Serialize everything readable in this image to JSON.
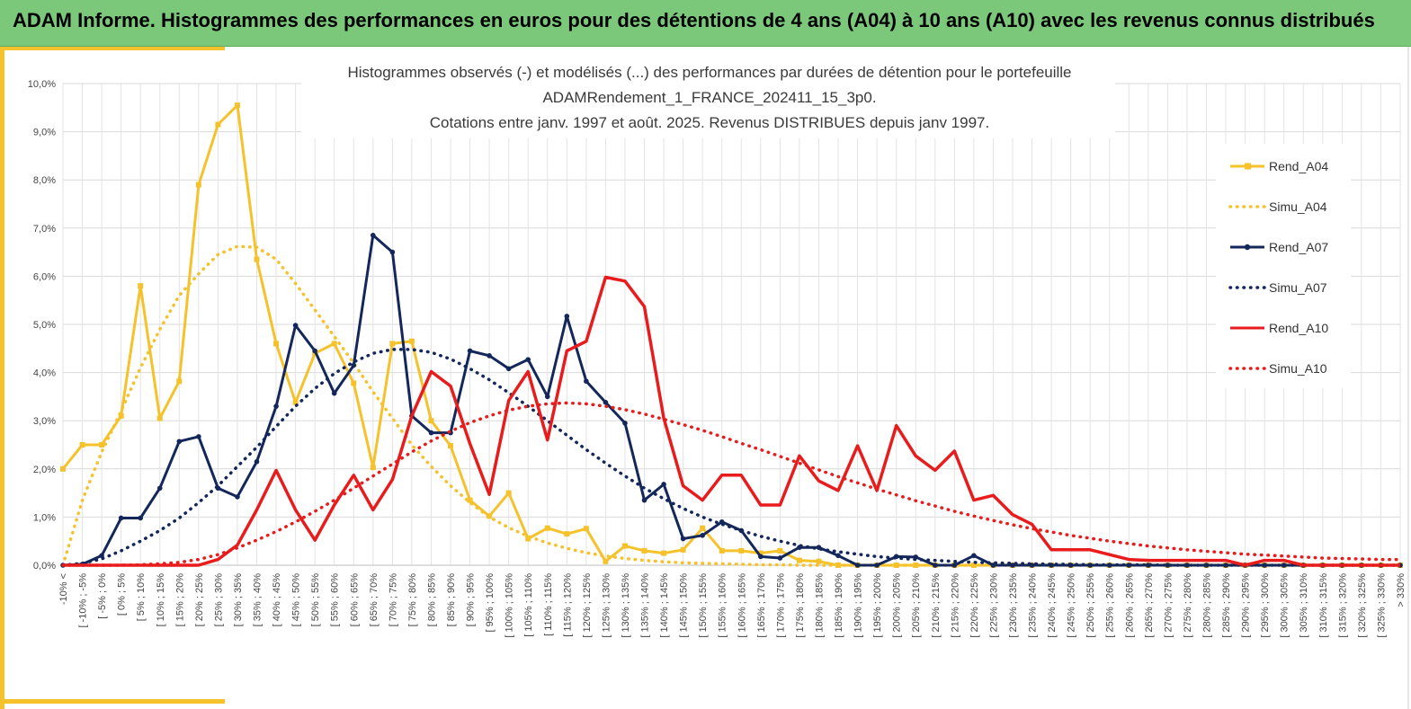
{
  "banner": {
    "title": "ADAM Informe. Histogrammes des performances en euros pour des détentions de 4 ans (A04) à 10 ans (A10) avec les revenus connus distribués"
  },
  "colors": {
    "A04": "#f5c22b",
    "A07": "#13275a",
    "A10": "#e81c1c",
    "banner": "#7bc87b"
  },
  "chart_data": {
    "type": "line",
    "title": [
      "Histogrammes observés (-) et modélisés (...) des performances par durées de détention pour le portefeuille",
      "ADAMRendement_1_FRANCE_202411_15_3p0.",
      "Cotations entre janv. 1997 et août. 2025. Revenus DISTRIBUES depuis janv 1997."
    ],
    "y_ticks": [
      "0,0%",
      "1,0%",
      "2,0%",
      "3,0%",
      "4,0%",
      "5,0%",
      "6,0%",
      "7,0%",
      "8,0%",
      "9,0%",
      "10,0%"
    ],
    "ylim": [
      0,
      10
    ],
    "grid": true,
    "legend_position": "right",
    "categories": [
      "-10% <",
      "[ -10% ; -5%",
      "[ -5% ; 0%",
      "[ 0% ; 5%",
      "[ 5% ; 10%",
      "[ 10% ; 15%",
      "[ 15% ; 20%",
      "[ 20% ; 25%",
      "[ 25% ; 30%",
      "[ 30% ; 35%",
      "[ 35% ; 40%",
      "[ 40% ; 45%",
      "[ 45% ; 50%",
      "[ 50% ; 55%",
      "[ 55% ; 60%",
      "[ 60% ; 65%",
      "[ 65% ; 70%",
      "[ 70% ; 75%",
      "[ 75% ; 80%",
      "[ 80% ; 85%",
      "[ 85% ; 90%",
      "[ 90% ; 95%",
      "[ 95% ; 100%",
      "[ 100% ; 105%",
      "[ 105% ; 110%",
      "[ 110% ; 115%",
      "[ 115% ; 120%",
      "[ 120% ; 125%",
      "[ 125% ; 130%",
      "[ 130% ; 135%",
      "[ 135% ; 140%",
      "[ 140% ; 145%",
      "[ 145% ; 150%",
      "[ 150% ; 155%",
      "[ 155% ; 160%",
      "[ 160% ; 165%",
      "[ 165% ; 170%",
      "[ 170% ; 175%",
      "[ 175% ; 180%",
      "[ 180% ; 185%",
      "[ 185% ; 190%",
      "[ 190% ; 195%",
      "[ 195% ; 200%",
      "[ 200% ; 205%",
      "[ 205% ; 210%",
      "[ 210% ; 215%",
      "[ 215% ; 220%",
      "[ 220% ; 225%",
      "[ 225% ; 230%",
      "[ 230% ; 235%",
      "[ 235% ; 240%",
      "[ 240% ; 245%",
      "[ 245% ; 250%",
      "[ 250% ; 255%",
      "[ 255% ; 260%",
      "[ 260% ; 265%",
      "[ 265% ; 270%",
      "[ 270% ; 275%",
      "[ 275% ; 280%",
      "[ 280% ; 285%",
      "[ 285% ; 290%",
      "[ 290% ; 295%",
      "[ 295% ; 300%",
      "[ 300% ; 305%",
      "[ 305% ; 310%",
      "[ 310% ; 315%",
      "[ 315% ; 320%",
      "[ 320% ; 325%",
      "[ 325% ; 330%",
      "> 330%"
    ],
    "series": [
      {
        "name": "Rend_A04",
        "style": "solid",
        "marker": "square",
        "color": "#f5c22b",
        "values": [
          2.0,
          2.5,
          2.5,
          3.1,
          5.8,
          3.05,
          3.82,
          7.9,
          9.15,
          9.55,
          6.35,
          4.6,
          3.38,
          4.4,
          4.6,
          3.78,
          2.03,
          4.6,
          4.65,
          3.0,
          2.48,
          1.35,
          1.02,
          1.5,
          0.55,
          0.77,
          0.65,
          0.76,
          0.08,
          0.4,
          0.3,
          0.25,
          0.32,
          0.77,
          0.3,
          0.3,
          0.25,
          0.3,
          0.1,
          0.08,
          0.0,
          0.0,
          0.0,
          0.0,
          0.0,
          0.0,
          0.0,
          0.0,
          0.0,
          0.0,
          0.0,
          0.0,
          0.0,
          0.0,
          0.0,
          0.0,
          0.0,
          0.0,
          0.0,
          0.0,
          0.0,
          0.0,
          0.0,
          0.0,
          0.0,
          0.0,
          0.0,
          0.0,
          0.0,
          0.0
        ]
      },
      {
        "name": "Simu_A04",
        "style": "dotted",
        "color": "#f5c22b",
        "values": [
          0.0,
          1.35,
          2.35,
          3.2,
          4.1,
          4.9,
          5.6,
          6.05,
          6.45,
          6.62,
          6.6,
          6.35,
          5.85,
          5.3,
          4.75,
          4.2,
          3.6,
          3.05,
          2.5,
          2.05,
          1.65,
          1.3,
          1.0,
          0.78,
          0.6,
          0.46,
          0.35,
          0.26,
          0.19,
          0.14,
          0.1,
          0.07,
          0.05,
          0.04,
          0.03,
          0.02,
          0.01,
          0.01,
          0.0,
          0.0,
          0.0,
          0.0,
          0.0,
          0.0,
          0.0,
          0.0,
          0.0,
          0.0,
          0.0,
          0.0,
          0.0,
          0.0,
          0.0,
          0.0,
          0.0,
          0.0,
          0.0,
          0.0,
          0.0,
          0.0,
          0.0,
          0.0,
          0.0,
          0.0,
          0.0,
          0.0,
          0.0,
          0.0,
          0.0,
          0.0
        ]
      },
      {
        "name": "Rend_A07",
        "style": "solid",
        "marker": "circle",
        "color": "#13275a",
        "values": [
          0.0,
          0.02,
          0.2,
          0.98,
          0.98,
          1.6,
          2.57,
          2.67,
          1.6,
          1.42,
          2.15,
          3.3,
          4.98,
          4.45,
          3.57,
          4.15,
          6.85,
          6.5,
          3.1,
          2.75,
          2.75,
          4.45,
          4.35,
          4.08,
          4.27,
          3.5,
          5.17,
          3.82,
          3.38,
          2.95,
          1.35,
          1.68,
          0.55,
          0.62,
          0.9,
          0.72,
          0.18,
          0.15,
          0.37,
          0.37,
          0.2,
          0.0,
          0.0,
          0.18,
          0.17,
          0.0,
          0.0,
          0.2,
          0.0,
          0.0,
          0.0,
          0.0,
          0.0,
          0.0,
          0.0,
          0.0,
          0.0,
          0.0,
          0.0,
          0.0,
          0.0,
          0.0,
          0.0,
          0.0,
          0.0,
          0.0,
          0.0,
          0.0,
          0.0,
          0.0
        ]
      },
      {
        "name": "Simu_A07",
        "style": "dotted",
        "color": "#13275a",
        "values": [
          0.0,
          0.04,
          0.13,
          0.3,
          0.5,
          0.72,
          0.98,
          1.3,
          1.65,
          2.05,
          2.45,
          2.88,
          3.3,
          3.67,
          3.98,
          4.22,
          4.4,
          4.48,
          4.48,
          4.42,
          4.28,
          4.08,
          3.85,
          3.58,
          3.3,
          3.0,
          2.7,
          2.4,
          2.12,
          1.85,
          1.6,
          1.38,
          1.18,
          1.0,
          0.85,
          0.72,
          0.6,
          0.5,
          0.41,
          0.34,
          0.28,
          0.23,
          0.18,
          0.15,
          0.12,
          0.1,
          0.08,
          0.06,
          0.05,
          0.04,
          0.03,
          0.02,
          0.02,
          0.01,
          0.01,
          0.01,
          0.01,
          0.0,
          0.0,
          0.0,
          0.0,
          0.0,
          0.0,
          0.0,
          0.0,
          0.0,
          0.0,
          0.0,
          0.0,
          0.0
        ]
      },
      {
        "name": "Rend_A10",
        "style": "solid",
        "marker": "none",
        "color": "#e81c1c",
        "values": [
          0.0,
          0.0,
          0.0,
          0.0,
          0.0,
          0.0,
          0.0,
          0.0,
          0.12,
          0.42,
          1.15,
          1.97,
          1.15,
          0.52,
          1.25,
          1.87,
          1.15,
          1.78,
          3.1,
          4.02,
          3.72,
          2.52,
          1.47,
          3.42,
          4.02,
          2.6,
          4.45,
          4.65,
          5.98,
          5.9,
          5.37,
          3.05,
          1.65,
          1.35,
          1.87,
          1.87,
          1.25,
          1.25,
          2.27,
          1.75,
          1.55,
          2.48,
          1.55,
          2.9,
          2.27,
          1.97,
          2.37,
          1.35,
          1.45,
          1.05,
          0.85,
          0.32,
          0.32,
          0.32,
          0.22,
          0.12,
          0.1,
          0.1,
          0.1,
          0.1,
          0.1,
          0.0,
          0.1,
          0.1,
          0.0,
          0.0,
          0.0,
          0.0,
          0.0,
          0.0
        ]
      },
      {
        "name": "Simu_A10",
        "style": "dotted",
        "color": "#e81c1c",
        "values": [
          0.0,
          0.0,
          0.0,
          0.0,
          0.01,
          0.03,
          0.06,
          0.12,
          0.22,
          0.36,
          0.52,
          0.7,
          0.9,
          1.12,
          1.35,
          1.6,
          1.85,
          2.1,
          2.35,
          2.58,
          2.78,
          2.96,
          3.1,
          3.22,
          3.3,
          3.35,
          3.37,
          3.35,
          3.3,
          3.23,
          3.14,
          3.03,
          2.92,
          2.8,
          2.67,
          2.53,
          2.4,
          2.26,
          2.12,
          1.98,
          1.84,
          1.71,
          1.58,
          1.46,
          1.34,
          1.23,
          1.12,
          1.02,
          0.93,
          0.84,
          0.76,
          0.69,
          0.62,
          0.56,
          0.5,
          0.45,
          0.4,
          0.36,
          0.32,
          0.29,
          0.26,
          0.23,
          0.21,
          0.19,
          0.17,
          0.15,
          0.14,
          0.13,
          0.12,
          0.12
        ]
      }
    ]
  }
}
